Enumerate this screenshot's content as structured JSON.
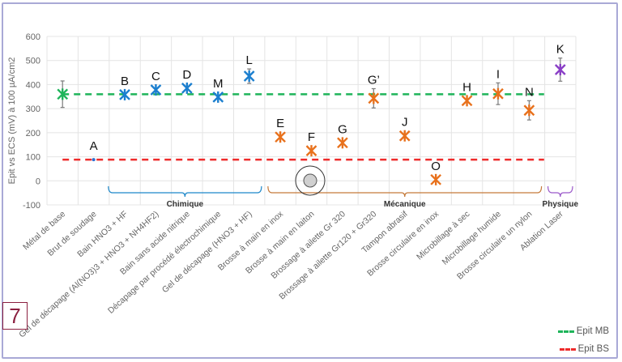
{
  "badge": "7",
  "chart_data": {
    "type": "scatter",
    "title": "",
    "xlabel": "",
    "ylabel": "Epit vs ECS (mV) à 100 µA/cm2",
    "ylim": [
      -100,
      600
    ],
    "yticks": [
      600,
      500,
      400,
      300,
      200,
      100,
      0,
      -100
    ],
    "grid": true,
    "categories": [
      "Métal de base",
      "Brut de soudage",
      "Bain HNO3 + HF",
      "Gel de décapage (Al(NO3)3 + HNO3 + NH4HF2)",
      "Bain sans acide nitrique",
      "Décapage par procédé électrochimique",
      "Gel de décapage (HNO3 + HF)",
      "Brosse à main en inox",
      "Brosse à main en laiton",
      "Brossage à ailette Gr 320",
      "Brossage à ailette Gr120 + Gr320",
      "Tampon abrasif",
      "Brosse circulaire en inox",
      "Microbillage à sec",
      "Microbillage humide",
      "Brosse circulaire un nylon",
      "Ablation Laser"
    ],
    "points": [
      {
        "label": "",
        "value": 360,
        "error": 55,
        "group": "base"
      },
      {
        "label": "A",
        "value": 88,
        "error": 0,
        "group": "soudage"
      },
      {
        "label": "B",
        "value": 358,
        "error": 0,
        "group": "chimique"
      },
      {
        "label": "C",
        "value": 378,
        "error": 0,
        "group": "chimique"
      },
      {
        "label": "D",
        "value": 385,
        "error": 0,
        "group": "chimique"
      },
      {
        "label": "M",
        "value": 348,
        "error": 0,
        "group": "chimique"
      },
      {
        "label": "L",
        "value": 435,
        "error": 30,
        "group": "chimique"
      },
      {
        "label": "E",
        "value": 182,
        "error": 0,
        "group": "mecanique"
      },
      {
        "label": "F",
        "value": 125,
        "error": 0,
        "group": "mecanique"
      },
      {
        "label": "G",
        "value": 158,
        "error": 0,
        "group": "mecanique"
      },
      {
        "label": "G’",
        "value": 343,
        "error": 40,
        "group": "mecanique"
      },
      {
        "label": "J",
        "value": 187,
        "error": 0,
        "group": "mecanique"
      },
      {
        "label": "O",
        "value": 5,
        "error": 0,
        "group": "mecanique"
      },
      {
        "label": "H",
        "value": 333,
        "error": 0,
        "group": "mecanique"
      },
      {
        "label": "I",
        "value": 362,
        "error": 45,
        "group": "mecanique"
      },
      {
        "label": "N",
        "value": 293,
        "error": 40,
        "group": "mecanique"
      },
      {
        "label": "K",
        "value": 462,
        "error": 48,
        "group": "physique"
      }
    ],
    "reference_lines": [
      {
        "name": "Epit MB",
        "value": 360,
        "color": "#1fb45a",
        "style": "dashed"
      },
      {
        "name": "Epit BS",
        "value": 88,
        "color": "#ee2b2b",
        "style": "dashed"
      }
    ],
    "groups": [
      {
        "key": "chimique",
        "name": "Chimique",
        "from": 2,
        "to": 6,
        "color": "#1c87c9"
      },
      {
        "key": "mecanique",
        "name": "Mécanique",
        "from": 7,
        "to": 15,
        "color": "#c57a3a"
      },
      {
        "key": "physique",
        "name": "Physique",
        "from": 16,
        "to": 16,
        "color": "#9b59c9"
      }
    ],
    "marker_colors": {
      "base": "#1fb45a",
      "soudage": "#2e6fd1",
      "chimique": "#1c7fcf",
      "mecanique": "#e8711c",
      "physique": "#8a3fc6"
    },
    "legend": {
      "position": "bottom-right",
      "entries": [
        "Epit MB",
        "Epit BS"
      ]
    }
  }
}
